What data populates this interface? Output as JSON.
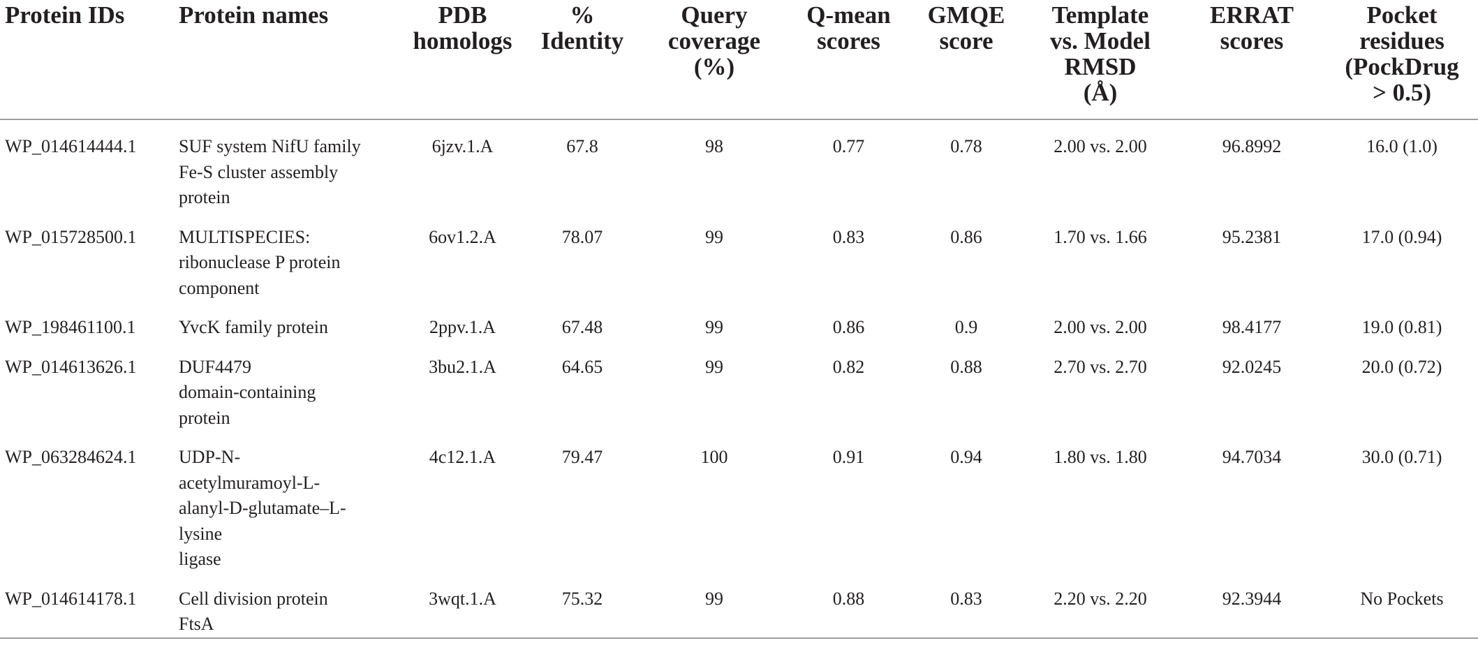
{
  "table": {
    "headers": [
      "Protein IDs",
      "Protein names",
      "PDB\nhomologs",
      "%\nIdentity",
      "Query\ncoverage\n(%)",
      "Q-mean\nscores",
      "GMQE\nscore",
      "Template\nvs. Model\nRMSD\n(Å)",
      "ERRAT\nscores",
      "Pocket\nresidues\n(PockDrug\n> 0.5)"
    ],
    "rows": [
      {
        "protein_id": "WP_014614444.1",
        "protein_name": "SUF system NifU family\nFe-S cluster assembly\nprotein",
        "pdb_homolog": "6jzv.1.A",
        "identity": "67.8",
        "query_coverage": "98",
        "qmean": "0.77",
        "gmqe": "0.78",
        "rmsd": "2.00 vs. 2.00",
        "errat": "96.8992",
        "pocket": "16.0 (1.0)"
      },
      {
        "protein_id": "WP_015728500.1",
        "protein_name": "MULTISPECIES:\nribonuclease P protein\ncomponent",
        "pdb_homolog": "6ov1.2.A",
        "identity": "78.07",
        "query_coverage": "99",
        "qmean": "0.83",
        "gmqe": "0.86",
        "rmsd": "1.70 vs. 1.66",
        "errat": "95.2381",
        "pocket": "17.0 (0.94)"
      },
      {
        "protein_id": "WP_198461100.1",
        "protein_name": "YvcK family protein",
        "pdb_homolog": "2ppv.1.A",
        "identity": "67.48",
        "query_coverage": "99",
        "qmean": "0.86",
        "gmqe": "0.9",
        "rmsd": "2.00 vs. 2.00",
        "errat": "98.4177",
        "pocket": "19.0 (0.81)"
      },
      {
        "protein_id": "WP_014613626.1",
        "protein_name": "DUF4479\ndomain-containing\nprotein",
        "pdb_homolog": "3bu2.1.A",
        "identity": "64.65",
        "query_coverage": "99",
        "qmean": "0.82",
        "gmqe": "0.88",
        "rmsd": "2.70 vs. 2.70",
        "errat": "92.0245",
        "pocket": "20.0 (0.72)"
      },
      {
        "protein_id": "WP_063284624.1",
        "protein_name": "UDP-N-\nacetylmuramoyl-L-\nalanyl-D-glutamate–L-\nlysine\nligase",
        "pdb_homolog": "4c12.1.A",
        "identity": "79.47",
        "query_coverage": "100",
        "qmean": "0.91",
        "gmqe": "0.94",
        "rmsd": "1.80 vs. 1.80",
        "errat": "94.7034",
        "pocket": "30.0 (0.71)"
      },
      {
        "protein_id": "WP_014614178.1",
        "protein_name": "Cell division protein\nFtsA",
        "pdb_homolog": "3wqt.1.A",
        "identity": "75.32",
        "query_coverage": "99",
        "qmean": "0.88",
        "gmqe": "0.83",
        "rmsd": "2.20 vs. 2.20",
        "errat": "92.3944",
        "pocket": "No Pockets"
      }
    ]
  }
}
